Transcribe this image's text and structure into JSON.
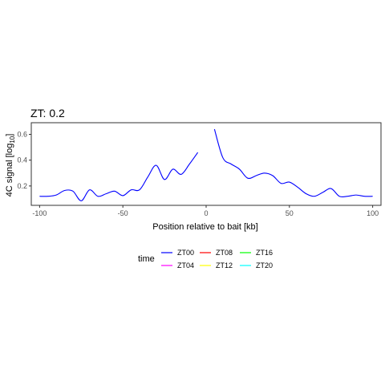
{
  "chart_data": {
    "type": "line",
    "title": "ZT: 0.2",
    "xlabel": "Position relative to bait [kb]",
    "ylabel_main": "4C signal [log",
    "ylabel_sub": "10",
    "ylabel_end": "]",
    "xlim": [
      -105,
      105
    ],
    "ylim": [
      0.05,
      0.69
    ],
    "x_ticks": [
      -100,
      -50,
      0,
      50,
      100
    ],
    "y_ticks": [
      0.2,
      0.4,
      0.6
    ],
    "x_tick_labels": [
      "-100",
      "-50",
      "0",
      "50",
      "100"
    ],
    "y_tick_labels": [
      "0.2",
      "0.4",
      "0.6"
    ],
    "grid": false,
    "legend": {
      "title": "time",
      "placement": "bottom",
      "entries": [
        {
          "label": "ZT00",
          "color": "#0000ff"
        },
        {
          "label": "ZT08",
          "color": "#ff0000"
        },
        {
          "label": "ZT16",
          "color": "#00ff00"
        },
        {
          "label": "ZT04",
          "color": "#ff00ff"
        },
        {
          "label": "ZT12",
          "color": "#ffff00"
        },
        {
          "label": "ZT20",
          "color": "#00ffff"
        }
      ]
    },
    "series": [
      {
        "name": "ZT00",
        "color": "#0000ff",
        "segments": [
          [
            [
              -100,
              0.12
            ],
            [
              -95,
              0.12
            ],
            [
              -90,
              0.13
            ],
            [
              -85,
              0.165
            ],
            [
              -80,
              0.16
            ],
            [
              -75,
              0.085
            ],
            [
              -70,
              0.17
            ],
            [
              -65,
              0.12
            ],
            [
              -60,
              0.14
            ],
            [
              -55,
              0.16
            ],
            [
              -50,
              0.125
            ],
            [
              -45,
              0.17
            ],
            [
              -40,
              0.17
            ],
            [
              -35,
              0.27
            ],
            [
              -30,
              0.36
            ],
            [
              -25,
              0.25
            ],
            [
              -20,
              0.33
            ],
            [
              -15,
              0.29
            ],
            [
              -10,
              0.37
            ],
            [
              -5,
              0.46
            ]
          ],
          [
            [
              5,
              0.64
            ],
            [
              10,
              0.42
            ],
            [
              15,
              0.37
            ],
            [
              20,
              0.33
            ],
            [
              25,
              0.26
            ],
            [
              30,
              0.28
            ],
            [
              35,
              0.3
            ],
            [
              40,
              0.28
            ],
            [
              45,
              0.22
            ],
            [
              50,
              0.23
            ],
            [
              55,
              0.19
            ],
            [
              60,
              0.14
            ],
            [
              65,
              0.12
            ],
            [
              70,
              0.15
            ],
            [
              75,
              0.18
            ],
            [
              80,
              0.12
            ],
            [
              85,
              0.12
            ],
            [
              90,
              0.13
            ],
            [
              95,
              0.12
            ],
            [
              100,
              0.12
            ]
          ]
        ]
      }
    ]
  }
}
